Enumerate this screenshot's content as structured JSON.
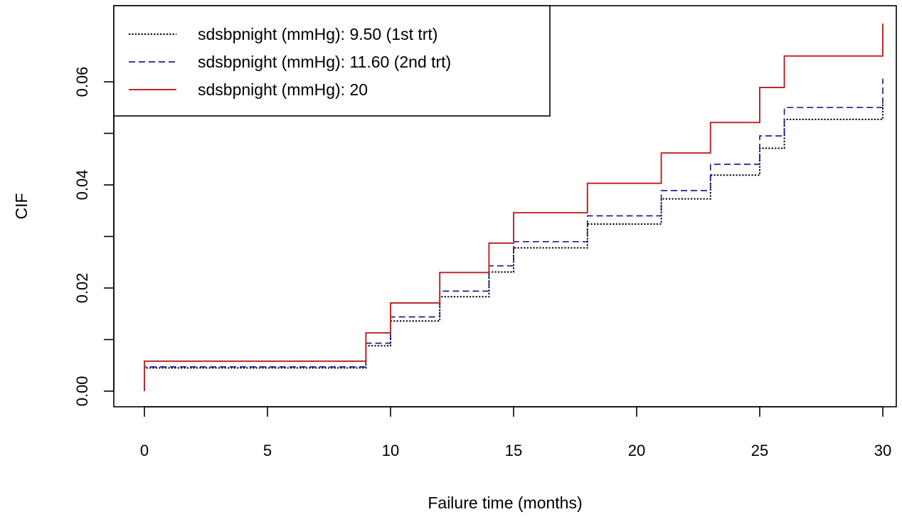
{
  "chart_data": {
    "type": "line",
    "title": "",
    "xlabel": "Failure time (months)",
    "ylabel": "CIF",
    "xlim": [
      0,
      30
    ],
    "ylim": [
      0,
      0.072
    ],
    "x_ticks": [
      0,
      5,
      10,
      15,
      20,
      25,
      30
    ],
    "x_tick_labels": [
      "0",
      "5",
      "10",
      "15",
      "20",
      "25",
      "30"
    ],
    "y_ticks": [
      0,
      0.01,
      0.02,
      0.03,
      0.04,
      0.05,
      0.06
    ],
    "y_tick_labels": [
      "0.00",
      "",
      "0.02",
      "",
      "0.04",
      "",
      "0.06"
    ],
    "grid": false,
    "legend_position": "top-left",
    "step": true,
    "series": [
      {
        "name": "sdsbpnight (mmHg): 9.50 (1st trt)",
        "color": "#000000",
        "line_style": "dotted",
        "x": [
          0,
          0,
          9,
          10,
          12,
          14,
          15,
          18,
          21,
          23,
          25,
          26,
          30
        ],
        "y": [
          0,
          0.0045,
          0.0088,
          0.0136,
          0.0183,
          0.0231,
          0.0278,
          0.0324,
          0.0373,
          0.0419,
          0.0471,
          0.0527,
          0.0558
        ]
      },
      {
        "name": "sdsbpnight (mmHg): 11.60 (2nd trt)",
        "color": "#1f1f8f",
        "line_style": "dashed",
        "x": [
          0,
          0,
          9,
          10,
          12,
          14,
          15,
          18,
          21,
          23,
          25,
          26,
          30
        ],
        "y": [
          0,
          0.0047,
          0.0093,
          0.0144,
          0.0194,
          0.0243,
          0.029,
          0.034,
          0.0389,
          0.044,
          0.0495,
          0.055,
          0.0606
        ]
      },
      {
        "name": "sdsbpnight (mmHg): 20",
        "color": "#c0282d",
        "line_style": "solid",
        "x": [
          0,
          0,
          9,
          10,
          12,
          14,
          15,
          18,
          21,
          23,
          25,
          26,
          30
        ],
        "y": [
          0,
          0.0058,
          0.0113,
          0.0171,
          0.023,
          0.0287,
          0.0346,
          0.0403,
          0.0462,
          0.0521,
          0.0589,
          0.065,
          0.0713
        ]
      }
    ]
  }
}
